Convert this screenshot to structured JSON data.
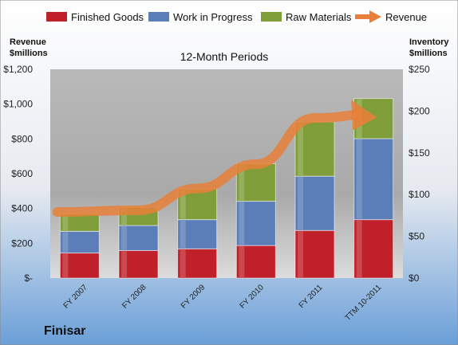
{
  "chart_data": {
    "type": "bar",
    "title": "12-Month Periods",
    "company": "Finisar",
    "left_axis_title": [
      "Revenue",
      "$millions"
    ],
    "right_axis_title": [
      "Inventory",
      "$millions"
    ],
    "categories": [
      "FY 2007",
      "FY 2008",
      "FY 2009",
      "FY 2010",
      "FY 2011",
      "TTM 10-2011"
    ],
    "left_ticks": [
      "$-",
      "$200",
      "$400",
      "$600",
      "$800",
      "$1,000",
      "$1,200"
    ],
    "right_ticks": [
      "$0",
      "$50",
      "$100",
      "$150",
      "$200",
      "$250"
    ],
    "left_ylim": [
      0,
      1200
    ],
    "right_ylim": [
      0,
      250
    ],
    "stacked": true,
    "grid": false,
    "legend_position": "top",
    "series": [
      {
        "name": "Finished Goods",
        "axis": "right",
        "color": "#c0202a",
        "values": [
          30,
          33,
          35,
          39,
          57,
          70
        ]
      },
      {
        "name": "Work in Progress",
        "axis": "right",
        "color": "#5b7db8",
        "values": [
          26,
          30,
          35,
          53,
          65,
          97
        ]
      },
      {
        "name": "Raw Materials",
        "axis": "right",
        "color": "#7f9e3a",
        "values": [
          21,
          22,
          37,
          45,
          65,
          48
        ]
      },
      {
        "name": "Revenue",
        "axis": "left",
        "type": "line",
        "color": "#e8803a",
        "values": [
          380,
          390,
          515,
          655,
          920,
          960
        ]
      }
    ]
  }
}
